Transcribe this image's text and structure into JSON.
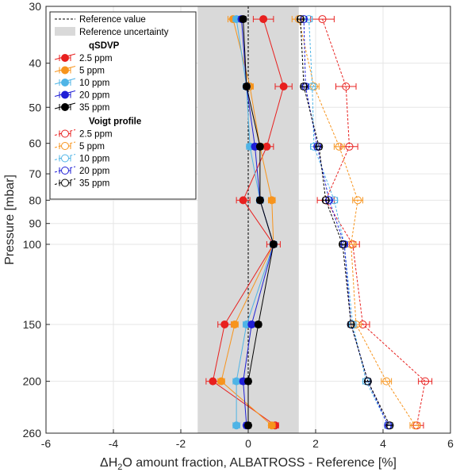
{
  "chart_data": {
    "type": "scatter",
    "title": "",
    "xlabel_parts": [
      "ΔH",
      "2",
      "O amount fraction, ALBATROSS - Reference [%]"
    ],
    "ylabel": "Pressure [mbar]",
    "xlim": [
      -6,
      6
    ],
    "ylim": [
      30,
      260
    ],
    "yscale": "log",
    "y_reversed": true,
    "grid": true,
    "xticks": [
      "-6",
      "-4",
      "-2",
      "0",
      "2",
      "4",
      "6"
    ],
    "yticks": [
      "30",
      "40",
      "50",
      "60",
      "70",
      "80",
      "90",
      "100",
      "150",
      "200",
      "260"
    ],
    "reference_value_x": 0,
    "reference_uncertainty": [
      -1.5,
      1.5
    ],
    "legend_position": "top-left",
    "legend": {
      "reference_value": "Reference value",
      "reference_uncertainty": "Reference uncertainty",
      "group1_title": "qSDVP",
      "group2_title": "Voigt profile"
    },
    "pressures": [
      32,
      45,
      61,
      80,
      100,
      150,
      200,
      250
    ],
    "groups": [
      {
        "title": "qSDVP",
        "line": "solid",
        "marker": "filled",
        "series": [
          {
            "name": "2.5 ppm",
            "color": "#e8201f",
            "x": [
              0.45,
              1.05,
              0.55,
              -0.15,
              0.75,
              -0.7,
              -1.05,
              0.8
            ],
            "err": [
              0.3,
              0.25,
              0.2,
              0.2,
              0.2,
              0.2,
              0.2,
              0.1
            ]
          },
          {
            "name": "5 ppm",
            "color": "#f7941d",
            "x": [
              -0.45,
              0.05,
              0.35,
              0.7,
              0.75,
              -0.4,
              -0.8,
              0.7
            ],
            "err": [
              0.15,
              0.1,
              0.1,
              0.1,
              0.1,
              0.1,
              0.1,
              0.1
            ]
          },
          {
            "name": "10 ppm",
            "color": "#4fb4e6",
            "x": [
              -0.35,
              -0.05,
              0.05,
              0.35,
              0.75,
              -0.05,
              -0.35,
              -0.35
            ],
            "err": [
              0.1,
              0.1,
              0.1,
              0.1,
              0.1,
              0.1,
              0.1,
              0.1
            ]
          },
          {
            "name": "20 ppm",
            "color": "#1f1fd6",
            "x": [
              -0.2,
              -0.05,
              0.2,
              0.35,
              0.75,
              0.1,
              -0.15,
              -0.05
            ],
            "err": [
              0.08,
              0.08,
              0.08,
              0.08,
              0.08,
              0.08,
              0.08,
              0.08
            ]
          },
          {
            "name": "35 ppm",
            "color": "#000000",
            "x": [
              -0.15,
              -0.05,
              0.35,
              0.35,
              0.75,
              0.3,
              0.0,
              0.0
            ],
            "err": [
              0.08,
              0.08,
              0.08,
              0.08,
              0.08,
              0.08,
              0.08,
              0.08
            ]
          }
        ]
      },
      {
        "title": "Voigt profile",
        "line": "dashed",
        "marker": "open",
        "series": [
          {
            "name": "2.5 ppm",
            "color": "#e8201f",
            "x": [
              2.2,
              2.9,
              3.0,
              2.3,
              3.1,
              3.4,
              5.25,
              5.0
            ],
            "err": [
              0.35,
              0.3,
              0.25,
              0.25,
              0.2,
              0.2,
              0.2,
              0.2
            ]
          },
          {
            "name": "5 ppm",
            "color": "#f7941d",
            "x": [
              1.5,
              1.95,
              2.7,
              3.25,
              3.05,
              3.2,
              4.1,
              4.95
            ],
            "err": [
              0.2,
              0.15,
              0.15,
              0.15,
              0.15,
              0.15,
              0.15,
              0.15
            ]
          },
          {
            "name": "10 ppm",
            "color": "#4fb4e6",
            "x": [
              1.8,
              1.9,
              1.95,
              2.55,
              2.85,
              3.1,
              3.5,
              4.15
            ],
            "err": [
              0.1,
              0.1,
              0.1,
              0.1,
              0.1,
              0.1,
              0.1,
              0.1
            ]
          },
          {
            "name": "20 ppm",
            "color": "#1f1fd6",
            "x": [
              1.65,
              1.7,
              2.05,
              2.4,
              2.85,
              3.05,
              3.55,
              4.15
            ],
            "err": [
              0.08,
              0.08,
              0.08,
              0.08,
              0.08,
              0.08,
              0.08,
              0.08
            ]
          },
          {
            "name": "35 ppm",
            "color": "#000000",
            "x": [
              1.55,
              1.65,
              2.1,
              2.3,
              2.8,
              3.05,
              3.55,
              4.2
            ],
            "err": [
              0.08,
              0.08,
              0.08,
              0.08,
              0.08,
              0.08,
              0.08,
              0.08
            ]
          }
        ]
      }
    ]
  }
}
